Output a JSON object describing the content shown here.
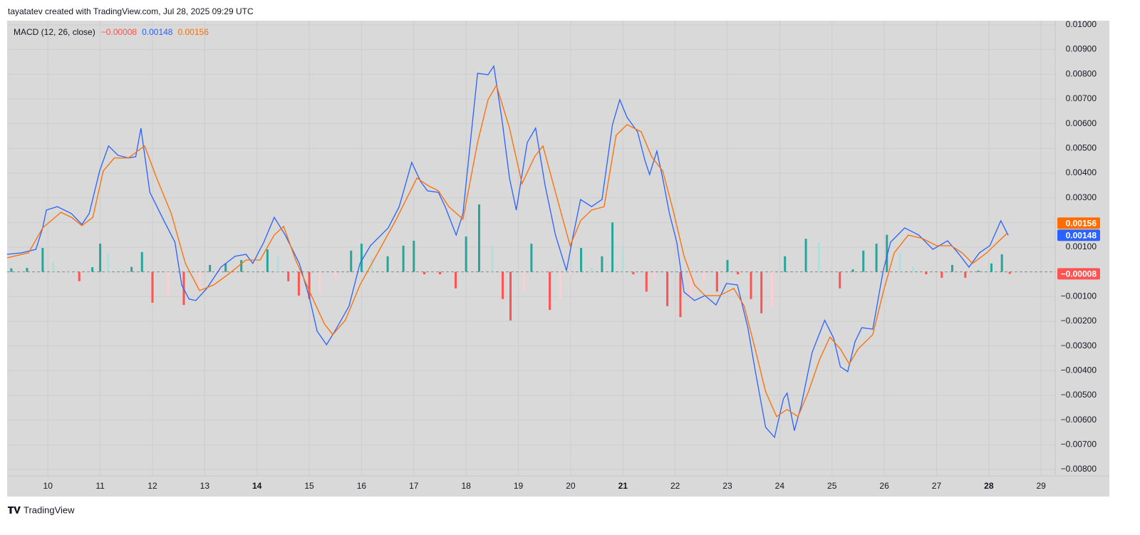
{
  "attribution": "tayatatev created with TradingView.com, Jul 28, 2025 09:29 UTC",
  "footer": "TradingView",
  "chart_data": {
    "type": "macd",
    "indicator": "MACD (12, 26, close)",
    "xlim": [
      9.22,
      29.27
    ],
    "ylim": [
      -0.00826,
      0.01017
    ],
    "grid": true,
    "xticks": [
      10,
      11,
      12,
      13,
      14,
      15,
      16,
      17,
      18,
      19,
      20,
      21,
      22,
      23,
      24,
      25,
      26,
      27,
      28,
      29
    ],
    "bold_xticks": [
      14,
      21,
      28
    ],
    "yticks": [
      {
        "value": 0.01,
        "label": "0.01000"
      },
      {
        "value": 0.009,
        "label": "0.00900"
      },
      {
        "value": 0.008,
        "label": "0.00800"
      },
      {
        "value": 0.007,
        "label": "0.00700"
      },
      {
        "value": 0.006,
        "label": "0.00600"
      },
      {
        "value": 0.005,
        "label": "0.00500"
      },
      {
        "value": 0.004,
        "label": "0.00400"
      },
      {
        "value": 0.003,
        "label": "0.00300"
      },
      {
        "value": 0.002,
        "label": "0.00200"
      },
      {
        "value": 0.001,
        "label": "0.00100"
      },
      {
        "value": -0.001,
        "label": "−0.00100"
      },
      {
        "value": -0.002,
        "label": "−0.00200"
      },
      {
        "value": -0.003,
        "label": "−0.00300"
      },
      {
        "value": -0.004,
        "label": "−0.00400"
      },
      {
        "value": -0.005,
        "label": "−0.00500"
      },
      {
        "value": -0.006,
        "label": "−0.00600"
      },
      {
        "value": -0.007,
        "label": "−0.00700"
      },
      {
        "value": -0.008,
        "label": "−0.00800"
      }
    ],
    "histogram": {
      "color": "#ff5252",
      "colors": {
        "up_strong": "#26a69a",
        "up_weak": "#b2dfdb",
        "down_strong": "#ff5252",
        "down_weak": "#ffcdd2"
      },
      "last_label": "−0.00008",
      "x": [
        9.3,
        9.6,
        9.9,
        10.1,
        10.4,
        10.6,
        10.85,
        11.0,
        11.15,
        11.4,
        11.6,
        11.8,
        12.0,
        12.3,
        12.6,
        12.9,
        13.1,
        13.4,
        13.7,
        13.9,
        14.2,
        14.4,
        14.6,
        14.8,
        15.0,
        15.2,
        15.5,
        15.8,
        16.0,
        16.2,
        16.5,
        16.8,
        17.0,
        17.2,
        17.5,
        17.8,
        18.0,
        18.25,
        18.5,
        18.7,
        18.85,
        19.1,
        19.25,
        19.45,
        19.6,
        19.8,
        20.0,
        20.2,
        20.4,
        20.6,
        20.8,
        21.0,
        21.2,
        21.45,
        21.6,
        21.85,
        22.1,
        22.3,
        22.55,
        22.8,
        23.0,
        23.2,
        23.45,
        23.65,
        23.85,
        24.1,
        24.3,
        24.5,
        24.75,
        24.95,
        25.15,
        25.4,
        25.6,
        25.85,
        26.05,
        26.3,
        26.55,
        26.8,
        27.1,
        27.3,
        27.55,
        27.8,
        28.05,
        28.25,
        28.4
      ],
      "values": [
        0.00014,
        0.00016,
        0.00097,
        0.0004,
        5e-05,
        -0.00038,
        0.00019,
        0.00114,
        0.00077,
        0.0001,
        0.0002,
        0.0008,
        -0.00125,
        -0.00096,
        -0.00134,
        -0.0008,
        0.00028,
        0.00034,
        0.00048,
        5e-05,
        0.00091,
        0.00063,
        -0.00038,
        -0.00096,
        -0.0011,
        -0.0008,
        -0.0003,
        0.00086,
        0.00114,
        0.00057,
        0.00063,
        0.00106,
        0.00126,
        -0.0001,
        -0.0001,
        -0.00067,
        0.00143,
        0.00273,
        0.00106,
        -0.0011,
        -0.00197,
        -0.0008,
        0.00114,
        5e-05,
        -0.00154,
        -0.0011,
        -0.0001,
        0.00097,
        0.0002,
        0.00063,
        0.002,
        0.00106,
        -0.0001,
        -0.0008,
        -0.0003,
        -0.00139,
        -0.00183,
        -0.0011,
        -0.00038,
        -0.0008,
        0.00048,
        -0.0001,
        -0.0011,
        -0.00168,
        -0.00139,
        0.00063,
        5e-05,
        0.00134,
        0.0012,
        0.0,
        -0.00067,
        0.0001,
        0.00086,
        0.00114,
        0.0015,
        0.00077,
        0.0002,
        -0.0001,
        -0.00024,
        0.00028,
        -0.00024,
        5e-05,
        0.00034,
        0.00071,
        -8e-05
      ]
    },
    "series": [
      {
        "color": "#2962ff",
        "last_label": "0.00148",
        "x": [
          9.22,
          9.5,
          9.77,
          9.9,
          9.97,
          10.18,
          10.45,
          10.65,
          10.79,
          10.99,
          11.16,
          11.34,
          11.54,
          11.68,
          11.78,
          11.95,
          12.22,
          12.43,
          12.56,
          12.7,
          12.83,
          13.04,
          13.31,
          13.58,
          13.79,
          13.92,
          14.13,
          14.33,
          14.54,
          14.81,
          15.01,
          15.15,
          15.33,
          15.49,
          15.76,
          15.97,
          16.17,
          16.51,
          16.72,
          16.96,
          17.13,
          17.26,
          17.47,
          17.6,
          17.81,
          17.94,
          18.11,
          18.22,
          18.42,
          18.53,
          18.69,
          18.83,
          18.96,
          19.17,
          19.33,
          19.51,
          19.71,
          19.92,
          20.05,
          20.19,
          20.4,
          20.6,
          20.8,
          20.94,
          21.08,
          21.28,
          21.42,
          21.51,
          21.65,
          21.76,
          21.89,
          22.03,
          22.17,
          22.37,
          22.57,
          22.78,
          22.98,
          23.19,
          23.39,
          23.53,
          23.73,
          23.9,
          24.07,
          24.14,
          24.28,
          24.41,
          24.62,
          24.86,
          25.03,
          25.16,
          25.3,
          25.44,
          25.57,
          25.78,
          25.98,
          26.12,
          26.39,
          26.66,
          26.93,
          27.21,
          27.41,
          27.62,
          27.82,
          28.02,
          28.23,
          28.37
        ],
        "values": [
          0.00071,
          0.00077,
          0.00091,
          0.00178,
          0.0025,
          0.00264,
          0.00236,
          0.00192,
          0.00236,
          0.00409,
          0.0051,
          0.00472,
          0.00461,
          0.00466,
          0.00582,
          0.00322,
          0.00207,
          0.0012,
          -0.00053,
          -0.0011,
          -0.00116,
          -0.00067,
          0.00019,
          0.00063,
          0.00071,
          0.00034,
          0.0012,
          0.00221,
          0.00149,
          0.00034,
          -0.0011,
          -0.0024,
          -0.00295,
          -0.0024,
          -0.00139,
          0.00034,
          0.00106,
          0.00178,
          0.00264,
          0.00443,
          0.00366,
          0.00328,
          0.00322,
          0.00264,
          0.00149,
          0.00236,
          0.00582,
          0.00804,
          0.00798,
          0.00833,
          0.00611,
          0.0038,
          0.0025,
          0.00524,
          0.00582,
          0.00351,
          0.00149,
          5e-05,
          0.00149,
          0.00293,
          0.00264,
          0.00293,
          0.00596,
          0.00697,
          0.00625,
          0.00567,
          0.00452,
          0.00394,
          0.00489,
          0.0038,
          0.00236,
          0.0012,
          -0.00082,
          -0.00116,
          -0.00096,
          -0.00134,
          -0.00047,
          -0.00053,
          -0.00226,
          -0.00399,
          -0.00629,
          -0.0067,
          -0.00514,
          -0.00491,
          -0.00643,
          -0.00542,
          -0.00326,
          -0.00196,
          -0.00268,
          -0.00384,
          -0.00404,
          -0.00283,
          -0.00226,
          -0.00232,
          5e-05,
          0.0012,
          0.00178,
          0.00149,
          0.00091,
          0.00126,
          0.00077,
          0.00019,
          0.00077,
          0.00106,
          0.00207,
          0.00148
        ]
      },
      {
        "color": "#ff6d00",
        "last_label": "0.00156",
        "x": [
          9.22,
          9.63,
          9.9,
          10.25,
          10.45,
          10.65,
          10.86,
          11.06,
          11.27,
          11.54,
          11.85,
          12.08,
          12.36,
          12.63,
          12.9,
          13.17,
          13.45,
          13.79,
          14.06,
          14.33,
          14.51,
          14.74,
          15.01,
          15.29,
          15.45,
          15.69,
          15.97,
          16.31,
          16.65,
          17.06,
          17.26,
          17.47,
          17.67,
          17.94,
          18.22,
          18.42,
          18.58,
          18.83,
          19.07,
          19.31,
          19.47,
          19.71,
          19.99,
          20.19,
          20.4,
          20.64,
          20.87,
          21.08,
          21.35,
          21.55,
          21.76,
          21.96,
          22.17,
          22.37,
          22.57,
          22.85,
          23.12,
          23.32,
          23.53,
          23.73,
          23.94,
          24.14,
          24.35,
          24.55,
          24.76,
          24.96,
          25.16,
          25.33,
          25.5,
          25.78,
          25.98,
          26.19,
          26.46,
          26.73,
          27.0,
          27.28,
          27.49,
          27.69,
          27.96,
          28.17,
          28.35
        ],
        "values": [
          0.00057,
          0.00077,
          0.00178,
          0.00241,
          0.00221,
          0.00187,
          0.00221,
          0.00409,
          0.00461,
          0.00461,
          0.0051,
          0.0038,
          0.00236,
          0.00034,
          -0.00076,
          -0.00053,
          -0.0001,
          0.00048,
          0.00048,
          0.00149,
          0.00184,
          0.00048,
          -0.00082,
          -0.00211,
          -0.00254,
          -0.00196,
          -0.00053,
          0.00077,
          0.00207,
          0.0038,
          0.00351,
          0.00328,
          0.00264,
          0.00213,
          0.00524,
          0.00697,
          0.00755,
          0.00582,
          0.00357,
          0.00466,
          0.0051,
          0.00322,
          0.00106,
          0.00207,
          0.0025,
          0.00264,
          0.00553,
          0.00596,
          0.00567,
          0.00466,
          0.00409,
          0.0025,
          0.00063,
          -0.00053,
          -0.00096,
          -0.00096,
          -0.00067,
          -0.00139,
          -0.00312,
          -0.00485,
          -0.00586,
          -0.00557,
          -0.00586,
          -0.00485,
          -0.00356,
          -0.00264,
          -0.00312,
          -0.00373,
          -0.00312,
          -0.00254,
          -0.00082,
          0.00077,
          0.00149,
          0.00135,
          0.00106,
          0.00106,
          0.00077,
          0.00034,
          0.00077,
          0.0012,
          0.00156
        ]
      }
    ]
  }
}
